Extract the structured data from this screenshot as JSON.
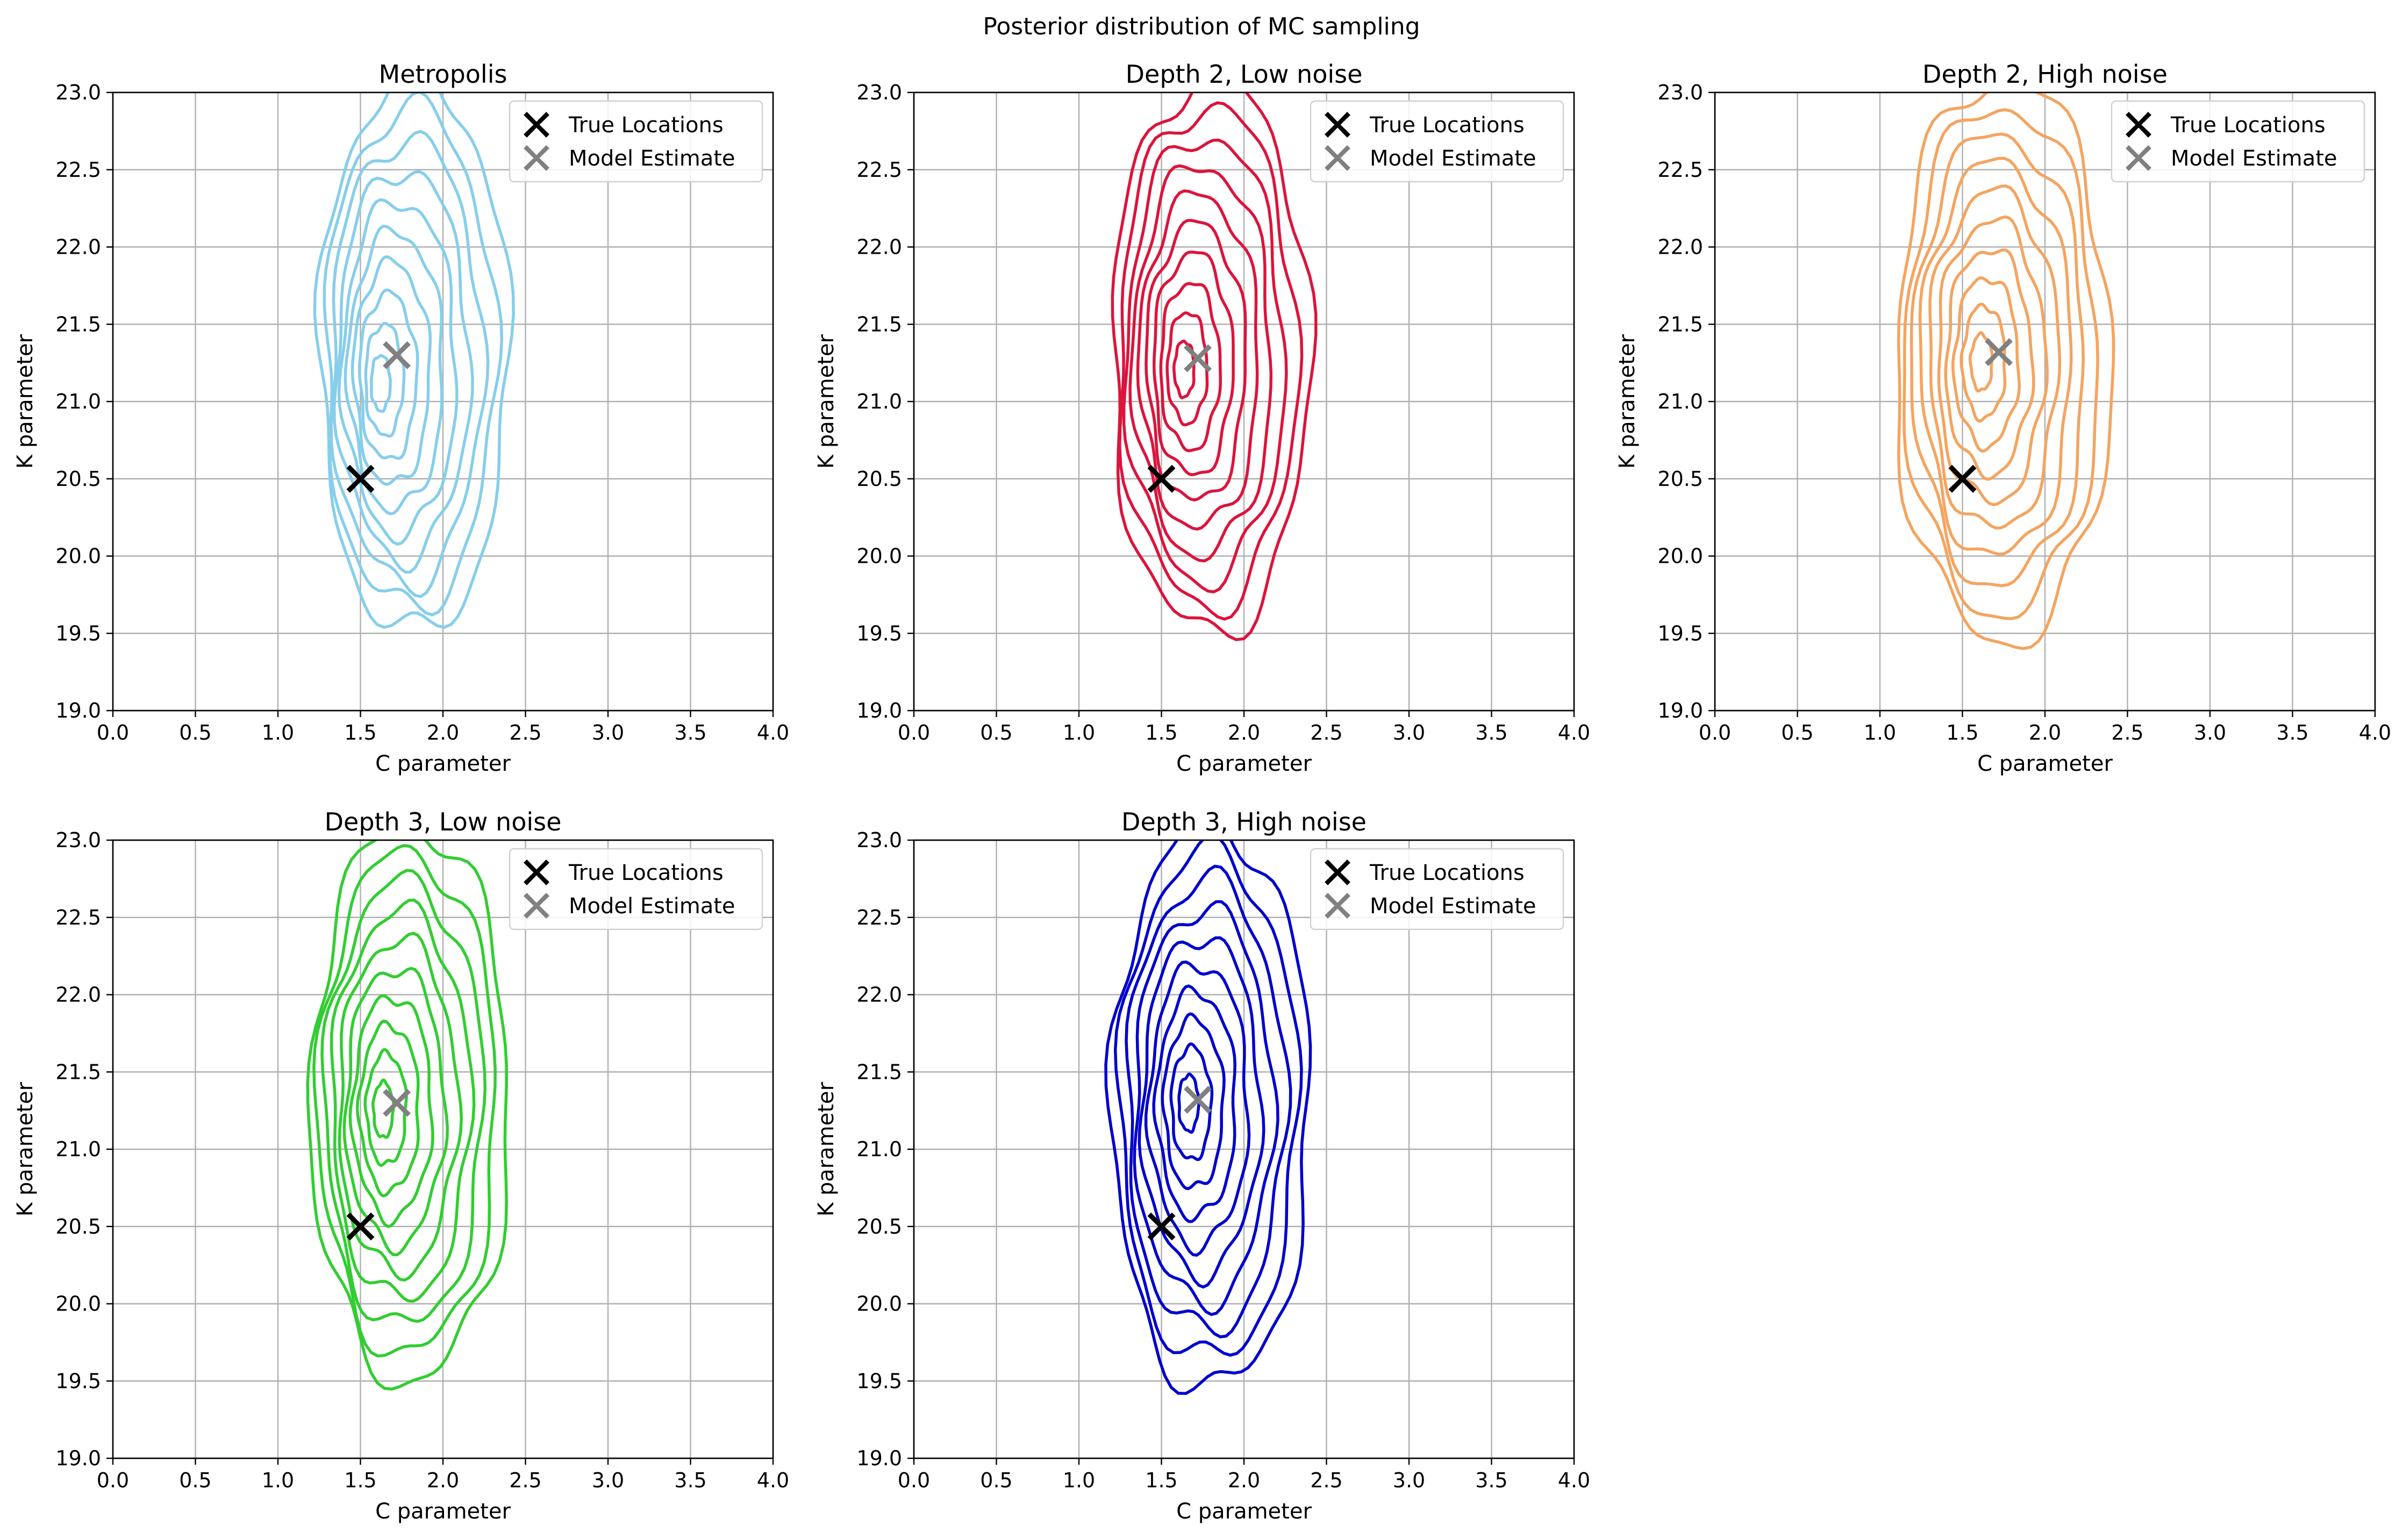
{
  "figure": {
    "suptitle": "Posterior distribution of MC sampling"
  },
  "chart_data": [
    {
      "type": "contour",
      "title": "Metropolis",
      "xlabel": "C parameter",
      "ylabel": "K parameter",
      "xlim": [
        0.0,
        4.0
      ],
      "ylim": [
        19.0,
        23.0
      ],
      "xticks": [
        "0.0",
        "0.5",
        "1.0",
        "1.5",
        "2.0",
        "2.5",
        "3.0",
        "3.5",
        "4.0"
      ],
      "yticks": [
        "19.0",
        "19.5",
        "20.0",
        "20.5",
        "21.0",
        "21.5",
        "22.0",
        "22.5",
        "23.0"
      ],
      "grid": true,
      "legend_position": "upper-right",
      "contour_color": "#87CEEB",
      "contours": {
        "center": [
          1.6,
          21.1
        ],
        "levels": 10,
        "outer_c_range": [
          1.25,
          2.4
        ],
        "outer_k_range": [
          19.5,
          23.1
        ]
      },
      "markers": [
        {
          "name": "True Locations",
          "x": 1.5,
          "y": 20.5,
          "color": "#000000"
        },
        {
          "name": "Model Estimate",
          "x": 1.72,
          "y": 21.3,
          "color": "#808080"
        }
      ]
    },
    {
      "type": "contour",
      "title": "Depth 2, Low noise",
      "xlabel": "C parameter",
      "ylabel": "K parameter",
      "xlim": [
        0.0,
        4.0
      ],
      "ylim": [
        19.0,
        23.0
      ],
      "xticks": [
        "0.0",
        "0.5",
        "1.0",
        "1.5",
        "2.0",
        "2.5",
        "3.0",
        "3.5",
        "4.0"
      ],
      "yticks": [
        "19.0",
        "19.5",
        "20.0",
        "20.5",
        "21.0",
        "21.5",
        "22.0",
        "22.5",
        "23.0"
      ],
      "grid": true,
      "legend_position": "upper-right",
      "contour_color": "#DC143C",
      "contours": {
        "center": [
          1.62,
          21.2
        ],
        "levels": 10,
        "outer_c_range": [
          1.2,
          2.4
        ],
        "outer_k_range": [
          19.5,
          23.1
        ]
      },
      "markers": [
        {
          "name": "True Locations",
          "x": 1.5,
          "y": 20.5,
          "color": "#000000"
        },
        {
          "name": "Model Estimate",
          "x": 1.72,
          "y": 21.28,
          "color": "#808080"
        }
      ]
    },
    {
      "type": "contour",
      "title": "Depth 2, High noise",
      "xlabel": "C parameter",
      "ylabel": "K parameter",
      "xlim": [
        0.0,
        4.0
      ],
      "ylim": [
        19.0,
        23.0
      ],
      "xticks": [
        "0.0",
        "0.5",
        "1.0",
        "1.5",
        "2.0",
        "2.5",
        "3.0",
        "3.5",
        "4.0"
      ],
      "yticks": [
        "19.0",
        "19.5",
        "20.0",
        "20.5",
        "21.0",
        "21.5",
        "22.0",
        "22.5",
        "23.0"
      ],
      "grid": true,
      "legend_position": "upper-right",
      "contour_color": "#F4A460",
      "contours": {
        "center": [
          1.6,
          21.25
        ],
        "levels": 10,
        "outer_c_range": [
          1.1,
          2.4
        ],
        "outer_k_range": [
          19.45,
          23.1
        ]
      },
      "markers": [
        {
          "name": "True Locations",
          "x": 1.5,
          "y": 20.5,
          "color": "#000000"
        },
        {
          "name": "Model Estimate",
          "x": 1.72,
          "y": 21.32,
          "color": "#808080"
        }
      ]
    },
    {
      "type": "contour",
      "title": "Depth 3, Low noise",
      "xlabel": "C parameter",
      "ylabel": "K parameter",
      "xlim": [
        0.0,
        4.0
      ],
      "ylim": [
        19.0,
        23.0
      ],
      "xticks": [
        "0.0",
        "0.5",
        "1.0",
        "1.5",
        "2.0",
        "2.5",
        "3.0",
        "3.5",
        "4.0"
      ],
      "yticks": [
        "19.0",
        "19.5",
        "20.0",
        "20.5",
        "21.0",
        "21.5",
        "22.0",
        "22.5",
        "23.0"
      ],
      "grid": true,
      "legend_position": "upper-right",
      "contour_color": "#32CD32",
      "contours": {
        "center": [
          1.62,
          21.25
        ],
        "levels": 10,
        "outer_c_range": [
          1.2,
          2.4
        ],
        "outer_k_range": [
          19.5,
          23.1
        ]
      },
      "markers": [
        {
          "name": "True Locations",
          "x": 1.5,
          "y": 20.5,
          "color": "#000000"
        },
        {
          "name": "Model Estimate",
          "x": 1.72,
          "y": 21.3,
          "color": "#808080"
        }
      ]
    },
    {
      "type": "contour",
      "title": "Depth 3, High noise",
      "xlabel": "C parameter",
      "ylabel": "K parameter",
      "xlim": [
        0.0,
        4.0
      ],
      "ylim": [
        19.0,
        23.0
      ],
      "xticks": [
        "0.0",
        "0.5",
        "1.0",
        "1.5",
        "2.0",
        "2.5",
        "3.0",
        "3.5",
        "4.0"
      ],
      "yticks": [
        "19.0",
        "19.5",
        "20.0",
        "20.5",
        "21.0",
        "21.5",
        "22.0",
        "22.5",
        "23.0"
      ],
      "grid": true,
      "legend_position": "upper-right",
      "contour_color": "#0000CD",
      "contours": {
        "center": [
          1.65,
          21.3
        ],
        "levels": 10,
        "outer_c_range": [
          1.2,
          2.4
        ],
        "outer_k_range": [
          19.45,
          23.1
        ]
      },
      "markers": [
        {
          "name": "True Locations",
          "x": 1.5,
          "y": 20.5,
          "color": "#000000"
        },
        {
          "name": "Model Estimate",
          "x": 1.72,
          "y": 21.32,
          "color": "#808080"
        }
      ]
    }
  ]
}
